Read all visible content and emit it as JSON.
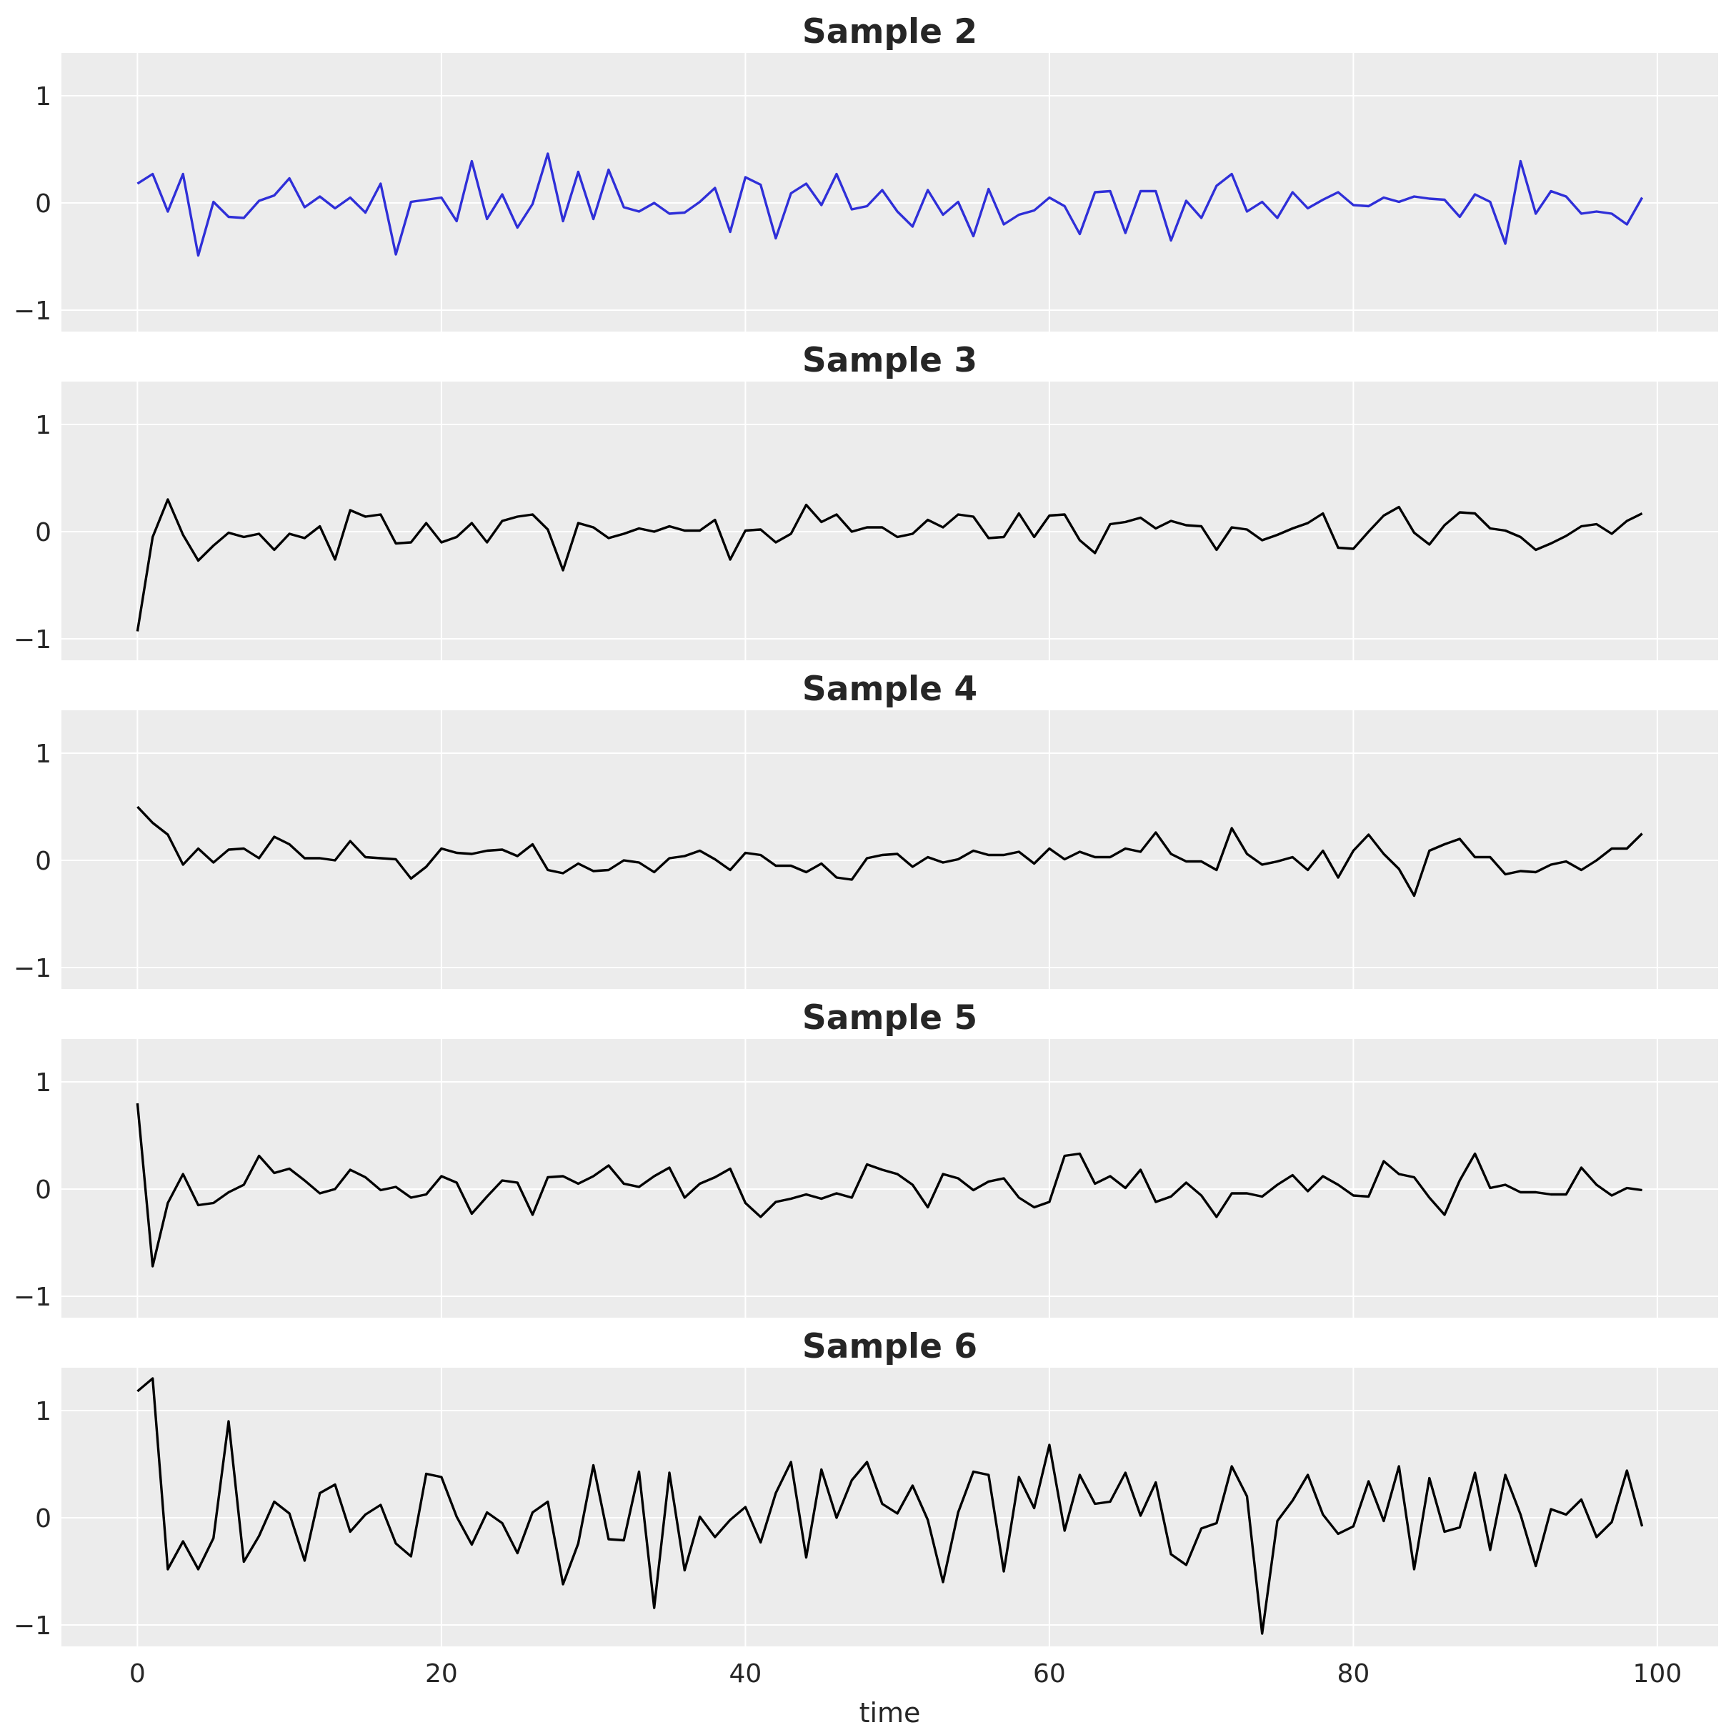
{
  "chart_data": {
    "type": "line",
    "xlabel": "time",
    "xlim": [
      -5,
      104
    ],
    "ylim": [
      -1.2,
      1.4
    ],
    "xticks": [
      0,
      20,
      40,
      60,
      80,
      100
    ],
    "yticks": [
      -1,
      0,
      1
    ],
    "grid": true,
    "background": "#ececec",
    "grid_color": "#ffffff",
    "x": [
      0,
      1,
      2,
      3,
      4,
      5,
      6,
      7,
      8,
      9,
      10,
      11,
      12,
      13,
      14,
      15,
      16,
      17,
      18,
      19,
      20,
      21,
      22,
      23,
      24,
      25,
      26,
      27,
      28,
      29,
      30,
      31,
      32,
      33,
      34,
      35,
      36,
      37,
      38,
      39,
      40,
      41,
      42,
      43,
      44,
      45,
      46,
      47,
      48,
      49,
      50,
      51,
      52,
      53,
      54,
      55,
      56,
      57,
      58,
      59,
      60,
      61,
      62,
      63,
      64,
      65,
      66,
      67,
      68,
      69,
      70,
      71,
      72,
      73,
      74,
      75,
      76,
      77,
      78,
      79,
      80,
      81,
      82,
      83,
      84,
      85,
      86,
      87,
      88,
      89,
      90,
      91,
      92,
      93,
      94,
      95,
      96,
      97,
      98,
      99
    ],
    "panels": [
      {
        "title": "Sample 2",
        "color": "#2f2fd8",
        "values": [
          0.18,
          0.27,
          -0.08,
          0.27,
          -0.49,
          0.01,
          -0.13,
          -0.14,
          0.02,
          0.07,
          0.23,
          -0.04,
          0.06,
          -0.05,
          0.05,
          -0.09,
          0.18,
          -0.48,
          0.01,
          0.03,
          0.05,
          -0.17,
          0.39,
          -0.15,
          0.08,
          -0.23,
          -0.01,
          0.46,
          -0.17,
          0.29,
          -0.15,
          0.31,
          -0.04,
          -0.08,
          0.0,
          -0.1,
          -0.09,
          0.01,
          0.14,
          -0.27,
          0.24,
          0.17,
          -0.33,
          0.09,
          0.18,
          -0.02,
          0.27,
          -0.06,
          -0.03,
          0.12,
          -0.08,
          -0.22,
          0.12,
          -0.11,
          0.01,
          -0.31,
          0.13,
          -0.2,
          -0.11,
          -0.07,
          0.05,
          -0.03,
          -0.29,
          0.1,
          0.11,
          -0.28,
          0.11,
          0.11,
          -0.35,
          0.02,
          -0.14,
          0.16,
          0.27,
          -0.08,
          0.01,
          -0.14,
          0.1,
          -0.05,
          0.03,
          0.1,
          -0.02,
          -0.03,
          0.05,
          0.01,
          0.06,
          0.04,
          0.03,
          -0.13,
          0.08,
          0.01,
          -0.38,
          0.39,
          -0.1,
          0.11,
          0.06,
          -0.1,
          -0.08,
          -0.1,
          -0.2,
          0.05
        ]
      },
      {
        "title": "Sample 3",
        "color": "#000000",
        "values": [
          -0.93,
          -0.05,
          0.3,
          -0.03,
          -0.27,
          -0.13,
          -0.01,
          -0.05,
          -0.02,
          -0.17,
          -0.02,
          -0.06,
          0.05,
          -0.26,
          0.2,
          0.14,
          0.16,
          -0.11,
          -0.1,
          0.08,
          -0.1,
          -0.05,
          0.08,
          -0.1,
          0.1,
          0.14,
          0.16,
          0.02,
          -0.36,
          0.08,
          0.04,
          -0.06,
          -0.02,
          0.03,
          0.0,
          0.05,
          0.01,
          0.01,
          0.11,
          -0.26,
          0.01,
          0.02,
          -0.1,
          -0.02,
          0.25,
          0.09,
          0.16,
          0.0,
          0.04,
          0.04,
          -0.05,
          -0.02,
          0.11,
          0.04,
          0.16,
          0.14,
          -0.06,
          -0.05,
          0.17,
          -0.05,
          0.15,
          0.16,
          -0.08,
          -0.2,
          0.07,
          0.09,
          0.13,
          0.03,
          0.1,
          0.06,
          0.05,
          -0.17,
          0.04,
          0.02,
          -0.08,
          -0.03,
          0.03,
          0.08,
          0.17,
          -0.15,
          -0.16,
          0.0,
          0.15,
          0.23,
          -0.01,
          -0.12,
          0.06,
          0.18,
          0.17,
          0.03,
          0.01,
          -0.05,
          -0.17,
          -0.11,
          -0.04,
          0.05,
          0.07,
          -0.02,
          0.1,
          0.17
        ]
      },
      {
        "title": "Sample 4",
        "color": "#000000",
        "values": [
          0.5,
          0.35,
          0.24,
          -0.04,
          0.11,
          -0.02,
          0.1,
          0.11,
          0.02,
          0.22,
          0.15,
          0.02,
          0.02,
          0.0,
          0.18,
          0.03,
          0.02,
          0.01,
          -0.17,
          -0.06,
          0.11,
          0.07,
          0.06,
          0.09,
          0.1,
          0.04,
          0.15,
          -0.09,
          -0.12,
          -0.03,
          -0.1,
          -0.09,
          0.0,
          -0.02,
          -0.11,
          0.02,
          0.04,
          0.09,
          0.01,
          -0.09,
          0.07,
          0.05,
          -0.05,
          -0.05,
          -0.11,
          -0.03,
          -0.16,
          -0.18,
          0.02,
          0.05,
          0.06,
          -0.06,
          0.03,
          -0.02,
          0.01,
          0.09,
          0.05,
          0.05,
          0.08,
          -0.03,
          0.11,
          0.01,
          0.08,
          0.03,
          0.03,
          0.11,
          0.08,
          0.26,
          0.06,
          -0.01,
          -0.01,
          -0.09,
          0.3,
          0.06,
          -0.04,
          -0.01,
          0.03,
          -0.09,
          0.09,
          -0.16,
          0.09,
          0.24,
          0.06,
          -0.08,
          -0.33,
          0.09,
          0.15,
          0.2,
          0.03,
          0.03,
          -0.13,
          -0.1,
          -0.11,
          -0.04,
          -0.01,
          -0.09,
          0.0,
          0.11,
          0.11,
          0.25
        ]
      },
      {
        "title": "Sample 5",
        "color": "#000000",
        "values": [
          0.8,
          -0.72,
          -0.13,
          0.14,
          -0.15,
          -0.13,
          -0.03,
          0.04,
          0.31,
          0.15,
          0.19,
          0.08,
          -0.04,
          0.0,
          0.18,
          0.11,
          -0.01,
          0.02,
          -0.08,
          -0.05,
          0.12,
          0.06,
          -0.23,
          -0.07,
          0.08,
          0.06,
          -0.24,
          0.11,
          0.12,
          0.05,
          0.12,
          0.22,
          0.05,
          0.02,
          0.12,
          0.2,
          -0.08,
          0.05,
          0.11,
          0.19,
          -0.13,
          -0.26,
          -0.12,
          -0.09,
          -0.05,
          -0.09,
          -0.04,
          -0.08,
          0.23,
          0.18,
          0.14,
          0.04,
          -0.17,
          0.14,
          0.1,
          -0.01,
          0.07,
          0.1,
          -0.08,
          -0.17,
          -0.12,
          0.31,
          0.33,
          0.05,
          0.12,
          0.01,
          0.18,
          -0.12,
          -0.07,
          0.06,
          -0.06,
          -0.26,
          -0.04,
          -0.04,
          -0.07,
          0.04,
          0.13,
          -0.02,
          0.12,
          0.04,
          -0.06,
          -0.07,
          0.26,
          0.14,
          0.11,
          -0.08,
          -0.24,
          0.08,
          0.33,
          0.01,
          0.04,
          -0.03,
          -0.03,
          -0.05,
          -0.05,
          0.2,
          0.04,
          -0.06,
          0.01,
          -0.01
        ]
      },
      {
        "title": "Sample 6",
        "color": "#000000",
        "values": [
          1.18,
          1.3,
          -0.48,
          -0.22,
          -0.48,
          -0.19,
          0.9,
          -0.41,
          -0.17,
          0.15,
          0.04,
          -0.4,
          0.23,
          0.31,
          -0.13,
          0.03,
          0.12,
          -0.24,
          -0.36,
          0.41,
          0.38,
          0.01,
          -0.25,
          0.05,
          -0.05,
          -0.33,
          0.05,
          0.15,
          -0.62,
          -0.24,
          0.49,
          -0.2,
          -0.21,
          0.43,
          -0.84,
          0.42,
          -0.49,
          0.01,
          -0.18,
          -0.02,
          0.1,
          -0.23,
          0.23,
          0.52,
          -0.37,
          0.45,
          0.0,
          0.35,
          0.52,
          0.13,
          0.04,
          0.3,
          -0.02,
          -0.6,
          0.05,
          0.43,
          0.4,
          -0.5,
          0.38,
          0.09,
          0.68,
          -0.12,
          0.4,
          0.13,
          0.15,
          0.42,
          0.02,
          0.33,
          -0.34,
          -0.44,
          -0.1,
          -0.05,
          0.48,
          0.2,
          -1.08,
          -0.03,
          0.16,
          0.4,
          0.03,
          -0.15,
          -0.08,
          0.34,
          -0.03,
          0.48,
          -0.48,
          0.37,
          -0.13,
          -0.09,
          0.42,
          -0.3,
          0.4,
          0.03,
          -0.45,
          0.08,
          0.03,
          0.17,
          -0.18,
          -0.04,
          0.44,
          -0.08
        ]
      }
    ]
  }
}
